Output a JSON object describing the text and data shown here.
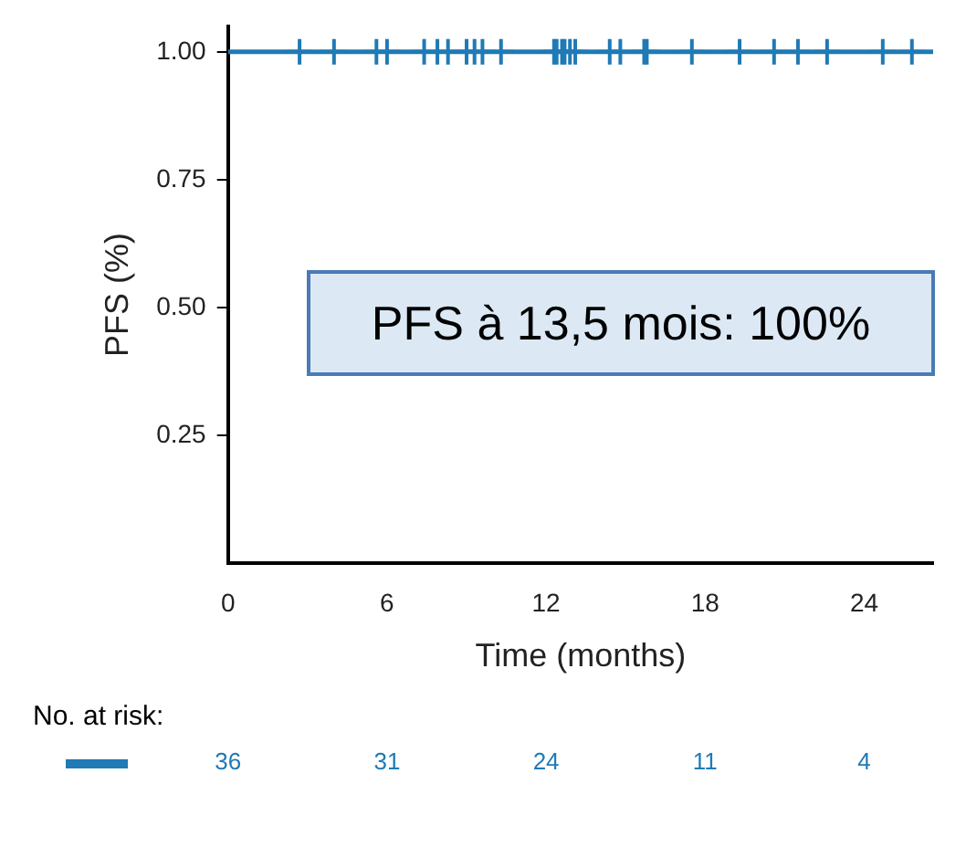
{
  "chart_data": {
    "type": "step",
    "xlabel": "Time (months)",
    "ylabel": "PFS (%)",
    "xlim": [
      0,
      26.6
    ],
    "xticks": [
      0,
      6,
      12,
      18,
      24
    ],
    "ylim": [
      0,
      1.05
    ],
    "yticks": [
      {
        "value": 0.25,
        "label": "0.25"
      },
      {
        "value": 0.5,
        "label": "0.50"
      },
      {
        "value": 0.75,
        "label": "0.75"
      },
      {
        "value": 1,
        "label": "1.00"
      }
    ],
    "grid": false,
    "legend": false,
    "series": [
      {
        "color": "#1f7ab5",
        "x": [
          0,
          26.6
        ],
        "values": [
          1,
          1
        ]
      },
      {
        "type": "scatter",
        "marker": "cross",
        "color": "#1f7ab5",
        "x": [
          2.7,
          4.0,
          5.6,
          6.0,
          7.4,
          7.9,
          8.3,
          9.0,
          9.3,
          9.6,
          10.3,
          12.3,
          12.4,
          12.6,
          12.7,
          12.9,
          13.1,
          14.4,
          14.8,
          15.7,
          15.8,
          17.5,
          19.3,
          20.6,
          21.5,
          22.6,
          24.7,
          25.8
        ],
        "values": [
          1,
          1,
          1,
          1,
          1,
          1,
          1,
          1,
          1,
          1,
          1,
          1,
          1,
          1,
          1,
          1,
          1,
          1,
          1,
          1,
          1,
          1,
          1,
          1,
          1,
          1,
          1,
          1
        ]
      }
    ],
    "annotations": [
      "PFS à 13,5 mois: 100%",
      "No. at risk:",
      "36",
      "31",
      "24",
      "11",
      "4"
    ]
  }
}
